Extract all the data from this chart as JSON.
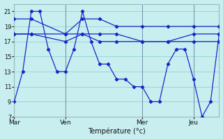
{
  "background_color": "#c8eef0",
  "line_color": "#1428c8",
  "grid_color": "#88cccc",
  "xlabel": "Température (°c)",
  "ylim": [
    7,
    22
  ],
  "yticks": [
    7,
    9,
    11,
    13,
    15,
    17,
    19,
    21
  ],
  "xlim": [
    0,
    144
  ],
  "day_labels": [
    "Mar",
    "Ven",
    "Mer",
    "Jeu"
  ],
  "day_positions": [
    0,
    36,
    90,
    126
  ],
  "series": [
    {
      "x": [
        0,
        6,
        12,
        18,
        24,
        30,
        36,
        42,
        48,
        54,
        60,
        66,
        72,
        78,
        84,
        90,
        96,
        102,
        108,
        114,
        120,
        126,
        132,
        138,
        144
      ],
      "y": [
        9,
        13,
        21,
        21,
        16,
        13,
        13,
        16,
        21,
        17,
        14,
        14,
        12,
        12,
        11,
        11,
        9,
        9,
        14,
        16,
        16,
        12,
        7,
        9,
        18
      ]
    },
    {
      "x": [
        0,
        12,
        36,
        48,
        60,
        72,
        90,
        108,
        126,
        144
      ],
      "y": [
        20,
        20,
        18,
        20,
        20,
        19,
        19,
        19,
        19,
        19
      ]
    },
    {
      "x": [
        0,
        12,
        36,
        48,
        60,
        72,
        90,
        108,
        126,
        144
      ],
      "y": [
        18,
        18,
        18,
        18,
        18,
        18,
        17,
        17,
        18,
        18
      ]
    },
    {
      "x": [
        0,
        12,
        36,
        48,
        60,
        72,
        90,
        108,
        126,
        144
      ],
      "y": [
        18,
        18,
        17,
        18,
        17,
        17,
        17,
        17,
        17,
        17
      ]
    }
  ]
}
